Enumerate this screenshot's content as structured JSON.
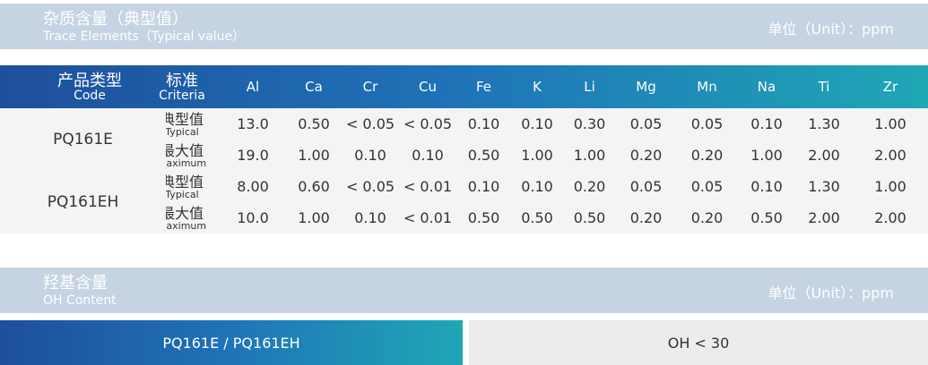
{
  "impurity": {
    "title": "杂质含量（典型值）",
    "subtitle": "Trace  Elements（Typical value）",
    "unit": "单位（Unit）：ppm",
    "header": {
      "product": {
        "zh": "产品类型",
        "en": "Code"
      },
      "criteria": {
        "zh": "标准",
        "en": "Criteria"
      },
      "elements": [
        "Al",
        "Ca",
        "Cr",
        "Cu",
        "Fe",
        "K",
        "Li",
        "Mg",
        "Mn",
        "Na",
        "Ti",
        "Zr"
      ]
    },
    "groups": [
      {
        "product": "PQ161E",
        "rows": [
          {
            "zh": "典型值",
            "en": "Typical",
            "values": [
              "13.0",
              "0.50",
              "< 0.05",
              "< 0.05",
              "0.10",
              "0.10",
              "0.30",
              "0.05",
              "0.05",
              "0.10",
              "1.30",
              "1.00"
            ]
          },
          {
            "zh": "最大值",
            "en": "Maximum",
            "values": [
              "19.0",
              "1.00",
              "0.10",
              "0.10",
              "0.50",
              "1.00",
              "1.00",
              "0.20",
              "0.20",
              "1.00",
              "2.00",
              "2.00"
            ]
          }
        ]
      },
      {
        "product": "PQ161EH",
        "rows": [
          {
            "zh": "典型值",
            "en": "Typical",
            "values": [
              "8.00",
              "0.60",
              "< 0.05",
              "< 0.01",
              "0.10",
              "0.10",
              "0.20",
              "0.05",
              "0.05",
              "0.10",
              "1.30",
              "1.00"
            ]
          },
          {
            "zh": "最大值",
            "en": "Maximum",
            "values": [
              "10.0",
              "1.00",
              "0.10",
              "< 0.01",
              "0.50",
              "0.50",
              "0.50",
              "0.20",
              "0.20",
              "0.50",
              "2.00",
              "2.00"
            ]
          }
        ]
      }
    ]
  },
  "hydroxyl": {
    "title": "羟基含量",
    "subtitle": "OH Content",
    "unit": "单位（Unit）：ppm",
    "product": "PQ161E / PQ161EH",
    "value": "OH < 30"
  }
}
